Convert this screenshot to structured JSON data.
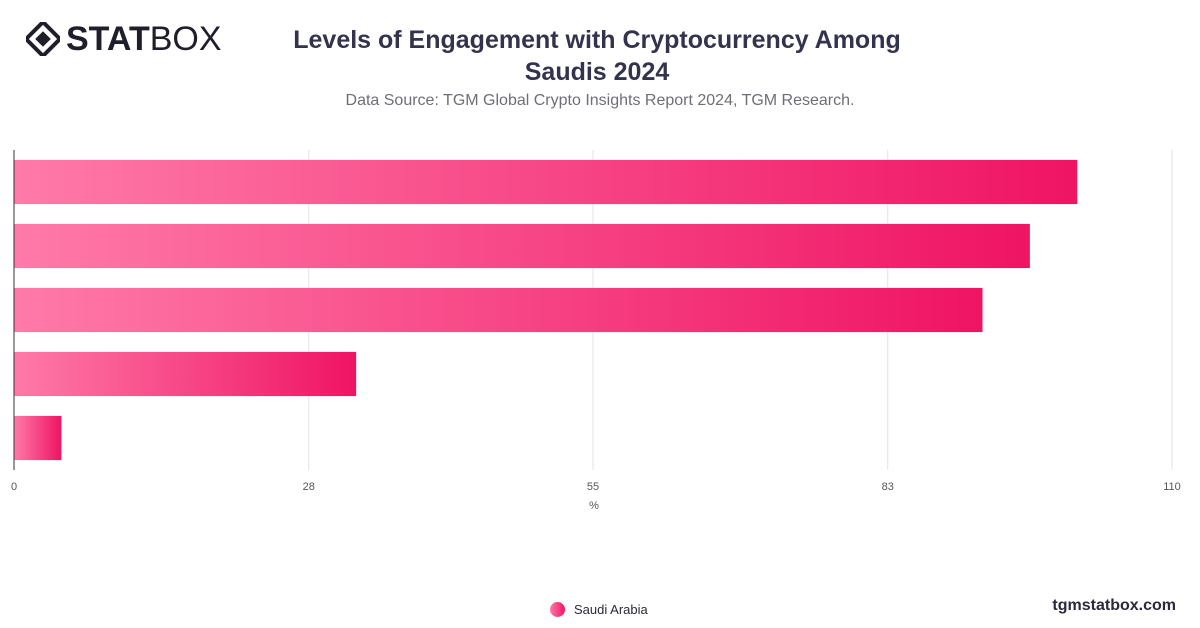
{
  "brand": {
    "bold": "STAT",
    "light": "BOX",
    "watermark": "tgmstatbox.com"
  },
  "header": {
    "title": "Levels of Engagement with Cryptocurrency Among Saudis 2024",
    "subtitle": "Data Source: TGM Global Crypto Insights Report 2024, TGM Research."
  },
  "colors": {
    "bar_start": "#ff7aa8",
    "bar_end": "#ef1464",
    "grid": "#e3e3e3",
    "axis": "#333333"
  },
  "chart_data": {
    "type": "bar",
    "orientation": "horizontal",
    "categories": [
      "",
      "",
      "",
      "",
      ""
    ],
    "series": [
      {
        "name": "Saudi Arabia",
        "values": [
          101,
          96.5,
          92,
          32.5,
          4.5
        ]
      }
    ],
    "xlim": [
      0,
      110
    ],
    "xticks": [
      "0",
      "28",
      "55",
      "83",
      "110"
    ],
    "xlabel": "%",
    "grid": true,
    "legend": "bottom"
  }
}
